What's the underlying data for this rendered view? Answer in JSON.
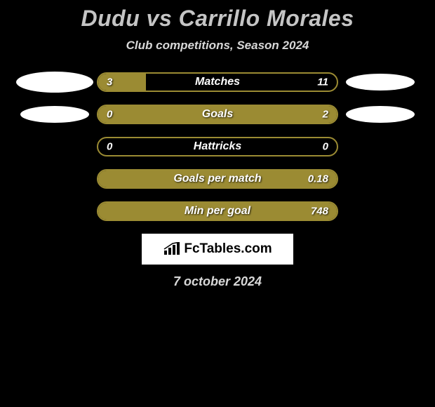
{
  "title": "Dudu vs Carrillo Morales",
  "subtitle": "Club competitions, Season 2024",
  "colors": {
    "background": "#000000",
    "bar_fill": "#9b8b33",
    "bar_border": "#9b8b33",
    "text_light": "#d8d8d8",
    "text_title": "#c5c5c5",
    "white": "#ffffff"
  },
  "bar_track_width": 344,
  "rows": [
    {
      "label": "Matches",
      "left_val": "3",
      "right_val": "11",
      "left_pct": 20,
      "right_pct": 0,
      "fill_side": "left",
      "deco_left": "ellipse-large",
      "deco_right": "ellipse-medium"
    },
    {
      "label": "Goals",
      "left_val": "0",
      "right_val": "2",
      "left_pct": 0,
      "right_pct": 0,
      "fill_side": "full",
      "deco_left": "ellipse-medium",
      "deco_right": "ellipse-medium"
    },
    {
      "label": "Hattricks",
      "left_val": "0",
      "right_val": "0",
      "left_pct": 0,
      "right_pct": 0,
      "fill_side": "none",
      "deco_left": "none",
      "deco_right": "none"
    },
    {
      "label": "Goals per match",
      "left_val": "",
      "right_val": "0.18",
      "left_pct": 0,
      "right_pct": 0,
      "fill_side": "full",
      "deco_left": "none",
      "deco_right": "none"
    },
    {
      "label": "Min per goal",
      "left_val": "",
      "right_val": "748",
      "left_pct": 0,
      "right_pct": 0,
      "fill_side": "full",
      "deco_left": "none",
      "deco_right": "none"
    }
  ],
  "logo_text": "FcTables.com",
  "date": "7 october 2024"
}
